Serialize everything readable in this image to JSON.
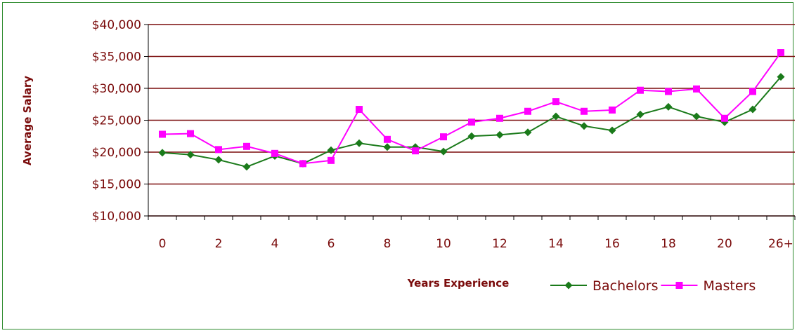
{
  "chart_data": {
    "type": "line",
    "xlabel": "Years Experience",
    "ylabel": "Average Salary",
    "categories": [
      "0",
      "1",
      "2",
      "3",
      "4",
      "5",
      "6",
      "7",
      "8",
      "9",
      "10",
      "11",
      "12",
      "13",
      "14",
      "15",
      "16",
      "17",
      "18",
      "19",
      "20",
      "21",
      "26+"
    ],
    "x_tick_labels": [
      "0",
      "2",
      "4",
      "6",
      "8",
      "10",
      "12",
      "14",
      "16",
      "18",
      "20",
      "26+"
    ],
    "y_ticks": [
      "$10,000",
      "$15,000",
      "$20,000",
      "$25,000",
      "$30,000",
      "$35,000",
      "$40,000"
    ],
    "ylim": [
      10000,
      40000
    ],
    "grid": "horizontal",
    "legend_position": "bottom-right",
    "series": [
      {
        "name": "Bachelors",
        "color": "#1a7a1a",
        "marker": "diamond",
        "values": [
          19900,
          19600,
          18800,
          17700,
          19400,
          18200,
          20300,
          21400,
          20800,
          20800,
          20100,
          22500,
          22700,
          23100,
          25600,
          24100,
          23400,
          25900,
          27100,
          25600,
          24700,
          26700,
          31800
        ]
      },
      {
        "name": "Masters",
        "color": "#ff00ff",
        "marker": "square",
        "values": [
          22800,
          22900,
          20400,
          20900,
          19800,
          18200,
          18700,
          26700,
          22000,
          20200,
          22400,
          24700,
          25300,
          26400,
          27900,
          26400,
          26600,
          29700,
          29500,
          29900,
          25300,
          29500,
          35600
        ]
      }
    ]
  }
}
